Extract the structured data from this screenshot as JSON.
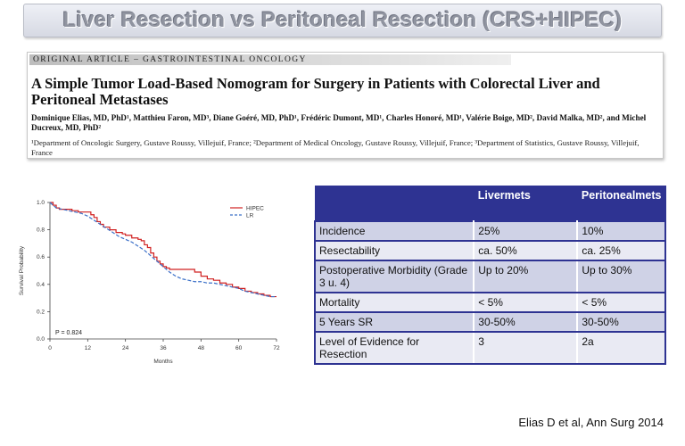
{
  "slide": {
    "title": "Liver Resection vs Peritoneal Resection (CRS+HIPEC)",
    "citation": "Elias D et al, Ann Surg 2014"
  },
  "article": {
    "section": "ORIGINAL ARTICLE – GASTROINTESTINAL ONCOLOGY",
    "title": "A Simple Tumor Load-Based Nomogram for Surgery in Patients with Colorectal Liver and Peritoneal Metastases",
    "authors": "Dominique Elias, MD, PhD¹, Matthieu Faron, MD³, Diane Goéré, MD, PhD¹, Frédéric Dumont, MD¹, Charles Honoré, MD¹, Valérie Boige, MD², David Malka, MD², and Michel Ducreux, MD, PhD²",
    "affiliations": "¹Department of Oncologic Surgery, Gustave Roussy, Villejuif, France; ²Department of Medical Oncology, Gustave Roussy, Villejuif, France; ³Department of Statistics, Gustave Roussy, Villejuif, France"
  },
  "table": {
    "headers": [
      "",
      "Livermets",
      "Peritonealmets"
    ],
    "rows": [
      [
        "Incidence",
        "25%",
        "10%"
      ],
      [
        "Resectability",
        "ca. 50%",
        "ca. 25%"
      ],
      [
        "Postoperative Morbidity (Grade 3 u. 4)",
        "Up to 20%",
        "Up to 30%"
      ],
      [
        "Mortality",
        "< 5%",
        "< 5%"
      ],
      [
        "5 Years SR",
        "30-50%",
        "30-50%"
      ],
      [
        "Level of Evidence for Resection",
        "3",
        "2a"
      ]
    ]
  },
  "chart_data": {
    "type": "line",
    "xlabel": "Months",
    "ylabel": "Survival Probability",
    "xlim": [
      0,
      72
    ],
    "ylim": [
      0,
      1.0
    ],
    "xticks": [
      0,
      12,
      24,
      36,
      48,
      60,
      72
    ],
    "yticks": [
      0.0,
      0.2,
      0.4,
      0.6,
      0.8,
      1.0
    ],
    "annotation": "P = 0.824",
    "legend_position": "top-right",
    "series": [
      {
        "name": "HIPEC",
        "color": "#d02020",
        "style": "step",
        "x": [
          0,
          1,
          2,
          3,
          5,
          7,
          9,
          11,
          13,
          14,
          15,
          16,
          17,
          19,
          21,
          23,
          24,
          26,
          28,
          29,
          30,
          31,
          32,
          33,
          34,
          35,
          36,
          37,
          38,
          40,
          42,
          44,
          46,
          48,
          50,
          52,
          54,
          56,
          58,
          60,
          62,
          64,
          66,
          68,
          70,
          72
        ],
        "y": [
          1.0,
          0.98,
          0.96,
          0.95,
          0.95,
          0.94,
          0.93,
          0.93,
          0.91,
          0.89,
          0.86,
          0.84,
          0.82,
          0.8,
          0.78,
          0.77,
          0.76,
          0.74,
          0.73,
          0.72,
          0.69,
          0.67,
          0.63,
          0.6,
          0.57,
          0.55,
          0.53,
          0.52,
          0.51,
          0.51,
          0.51,
          0.51,
          0.49,
          0.46,
          0.44,
          0.43,
          0.41,
          0.4,
          0.38,
          0.37,
          0.35,
          0.34,
          0.33,
          0.32,
          0.31,
          0.31
        ]
      },
      {
        "name": "LR",
        "color": "#3a6fc8",
        "style": "dashed",
        "x": [
          0,
          2,
          4,
          6,
          8,
          10,
          12,
          14,
          16,
          18,
          20,
          22,
          24,
          26,
          28,
          30,
          32,
          34,
          36,
          38,
          40,
          42,
          44,
          46,
          48,
          50,
          52,
          54,
          56,
          58,
          60,
          62,
          64,
          66,
          68,
          70,
          72
        ],
        "y": [
          1.0,
          0.96,
          0.95,
          0.94,
          0.93,
          0.92,
          0.9,
          0.87,
          0.84,
          0.81,
          0.78,
          0.75,
          0.73,
          0.71,
          0.68,
          0.65,
          0.61,
          0.57,
          0.53,
          0.49,
          0.46,
          0.44,
          0.43,
          0.42,
          0.42,
          0.41,
          0.41,
          0.4,
          0.39,
          0.38,
          0.37,
          0.35,
          0.34,
          0.33,
          0.32,
          0.31,
          0.31
        ]
      }
    ]
  }
}
